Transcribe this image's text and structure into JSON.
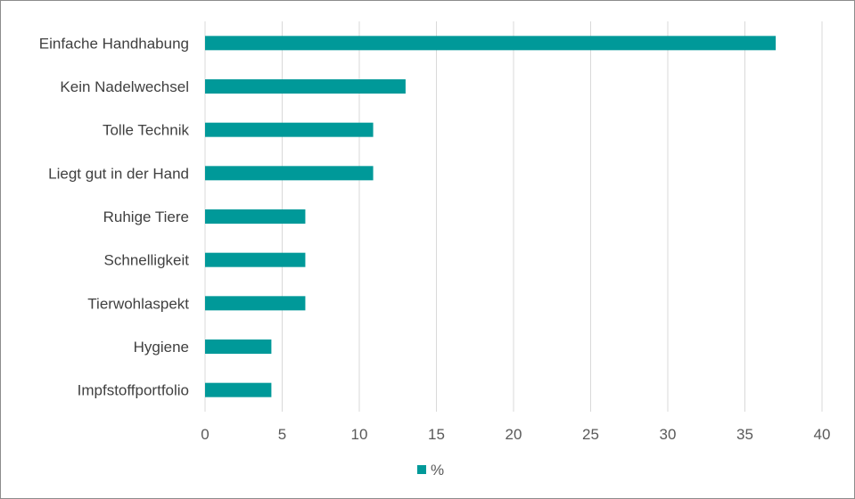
{
  "chart_data": {
    "type": "bar",
    "orientation": "horizontal",
    "categories": [
      "Einfache Handhabung",
      "Kein Nadelwechsel",
      "Tolle Technik",
      "Liegt gut in der Hand",
      "Ruhige Tiere",
      "Schnelligkeit",
      "Tierwohlaspekt",
      "Hygiene",
      "Impfstoffportfolio"
    ],
    "series": [
      {
        "name": "%",
        "values": [
          37,
          13,
          10.9,
          10.9,
          6.5,
          6.5,
          6.5,
          4.3,
          4.3
        ],
        "color": "#009999"
      }
    ],
    "xlim": [
      0,
      40
    ],
    "xticks": [
      0,
      5,
      10,
      15,
      20,
      25,
      30,
      35,
      40
    ],
    "grid": "vertical",
    "gridColor": "#d9d9d9",
    "legend": "bottom"
  }
}
